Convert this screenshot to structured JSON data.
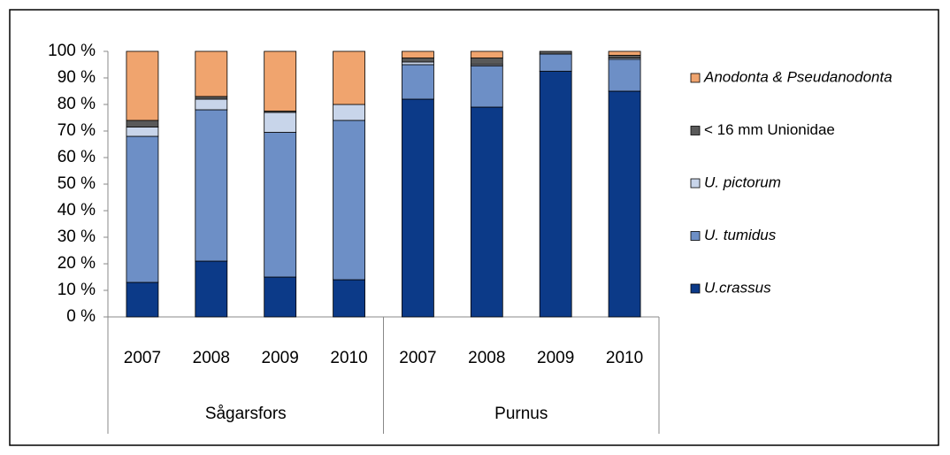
{
  "chart_data": {
    "type": "stacked_bar",
    "groups": [
      {
        "name": "Sågarsfors",
        "categories": [
          "2007",
          "2008",
          "2009",
          "2010"
        ]
      },
      {
        "name": "Purnus",
        "categories": [
          "2007",
          "2008",
          "2009",
          "2010"
        ]
      }
    ],
    "series": [
      {
        "name": "U.crassus",
        "color": "#0c3a88",
        "values": [
          13,
          21,
          15,
          14,
          82,
          79,
          92.5,
          85
        ]
      },
      {
        "name": "U. tumidus",
        "color": "#6d8fc6",
        "values": [
          55,
          57,
          54.5,
          60,
          13,
          15.5,
          6.5,
          12
        ]
      },
      {
        "name": "U. pictorum",
        "color": "#c8d5ea",
        "values": [
          3.5,
          4,
          7.5,
          6,
          1,
          0.5,
          0,
          0.5
        ]
      },
      {
        "name": "< 16 mm Unionidae",
        "color": "#595959",
        "values": [
          2.5,
          1,
          0.5,
          0,
          1.5,
          2.5,
          1,
          1
        ]
      },
      {
        "name": "Anodonta & Pseudanodonta",
        "color": "#f0a46e",
        "values": [
          26,
          17,
          22.5,
          20,
          2.5,
          2.5,
          0,
          1.5
        ]
      }
    ],
    "ylim": [
      0,
      100
    ],
    "yticks": [
      {
        "value": 0,
        "label": "0 %"
      },
      {
        "value": 10,
        "label": "10 %"
      },
      {
        "value": 20,
        "label": "20 %"
      },
      {
        "value": 30,
        "label": "30 %"
      },
      {
        "value": 40,
        "label": "40 %"
      },
      {
        "value": 50,
        "label": "50 %"
      },
      {
        "value": 60,
        "label": "60 %"
      },
      {
        "value": 70,
        "label": "70 %"
      },
      {
        "value": 80,
        "label": "80 %"
      },
      {
        "value": 90,
        "label": "90 %"
      },
      {
        "value": 100,
        "label": "100 %"
      }
    ],
    "legend": "right"
  }
}
